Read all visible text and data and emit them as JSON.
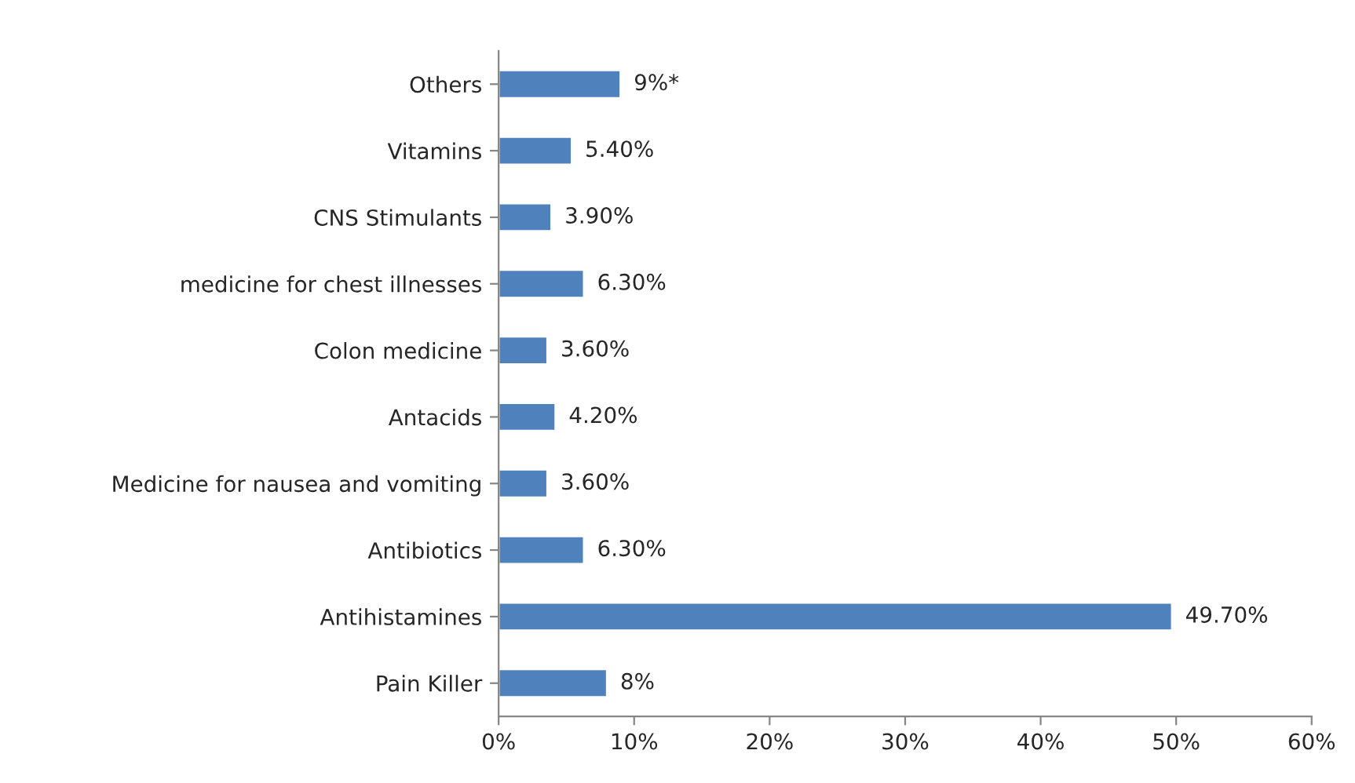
{
  "chart_data": {
    "type": "bar",
    "orientation": "horizontal",
    "categories": [
      "Others",
      "Vitamins",
      "CNS Stimulants",
      "medicine for chest illnesses",
      "Colon medicine",
      "Antacids",
      "Medicine for nausea and vomiting",
      "Antibiotics",
      "Antihistamines",
      "Pain Killer"
    ],
    "values": [
      9,
      5.4,
      3.9,
      6.3,
      3.6,
      4.2,
      3.6,
      6.3,
      49.7,
      8
    ],
    "value_labels": [
      "9%*",
      "5.40%",
      "3.90%",
      "6.30%",
      "3.60%",
      "4.20%",
      "3.60%",
      "6.30%",
      "49.70%",
      "8%"
    ],
    "color": "#4f81bd",
    "xlim": [
      0,
      60
    ],
    "xticks": [
      {
        "value": 0,
        "label": "0%"
      },
      {
        "value": 10,
        "label": "10%"
      },
      {
        "value": 20,
        "label": "20%"
      },
      {
        "value": 30,
        "label": "30%"
      },
      {
        "value": 40,
        "label": "40%"
      },
      {
        "value": 50,
        "label": "50%"
      },
      {
        "value": 60,
        "label": "60%"
      }
    ],
    "grid": false
  }
}
